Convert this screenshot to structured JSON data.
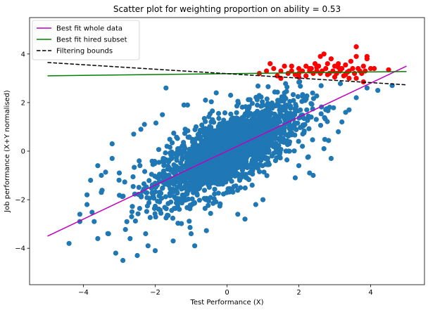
{
  "chart_data": {
    "type": "scatter",
    "title": "Scatter plot for weighting proportion on ability = 0.53",
    "xlabel": "Test Performance (X)",
    "ylabel": "Job performance (X+Y normalised)",
    "xlim": [
      -5.5,
      5.5
    ],
    "ylim": [
      -5.5,
      5.5
    ],
    "xticks": [
      -4,
      -2,
      0,
      2,
      4
    ],
    "yticks": [
      -4,
      -2,
      0,
      2,
      4
    ],
    "grid": false,
    "legend_position": "top-left",
    "series": [
      {
        "name": "Best fit whole data",
        "kind": "line",
        "color": "#bf00bf",
        "dash": "solid",
        "x": [
          -5.0,
          5.0
        ],
        "y": [
          -3.5,
          3.5
        ]
      },
      {
        "name": "Best fit hired subset",
        "kind": "line",
        "color": "#008000",
        "dash": "solid",
        "x": [
          -5.0,
          5.0
        ],
        "y": [
          3.1,
          3.28
        ]
      },
      {
        "name": "Filtering bounds",
        "kind": "line",
        "color": "#000000",
        "dash": "dashed",
        "x": [
          -5.0,
          5.0
        ],
        "y": [
          3.65,
          2.73
        ]
      },
      {
        "kind": "points",
        "color": "#1f77b4",
        "cloud": {
          "x_mean": 0,
          "y_mean": 0,
          "x_sd": 1.0,
          "y_sd": 1.0,
          "correlation": 0.7,
          "count": 2200
        },
        "outliers": [
          [
            -4.4,
            -3.8
          ],
          [
            -4.1,
            -2.9
          ],
          [
            -3.9,
            -1.8
          ],
          [
            -3.8,
            -1.2
          ],
          [
            -3.6,
            -0.6
          ],
          [
            -3.9,
            -2.2
          ],
          [
            -3.5,
            -1.7
          ],
          [
            -3.2,
            -0.3
          ],
          [
            -3.0,
            -0.9
          ],
          [
            -3.3,
            -3.4
          ],
          [
            -2.9,
            -4.5
          ],
          [
            -3.1,
            -4.2
          ],
          [
            -2.7,
            -3.6
          ],
          [
            -2.2,
            -3.9
          ],
          [
            -2.0,
            -4.1
          ],
          [
            -1.5,
            -3.7
          ],
          [
            -1.0,
            -3.4
          ],
          [
            -3.5,
            -1.0
          ],
          [
            -3.2,
            0.3
          ],
          [
            -2.6,
            0.7
          ],
          [
            -2.3,
            1.1
          ],
          [
            -1.8,
            1.5
          ],
          [
            -1.2,
            1.9
          ],
          [
            -0.6,
            2.1
          ],
          [
            0.1,
            2.3
          ],
          [
            1.2,
            1.2
          ],
          [
            1.5,
            0.4
          ],
          [
            2.0,
            -0.6
          ],
          [
            2.4,
            -1.0
          ],
          [
            2.7,
            0.1
          ],
          [
            2.9,
            -0.3
          ],
          [
            3.1,
            0.8
          ],
          [
            3.4,
            1.7
          ],
          [
            0.3,
            -2.6
          ],
          [
            0.8,
            -2.2
          ],
          [
            -0.9,
            -3.9
          ],
          [
            3.2,
            1.2
          ],
          [
            2.1,
            0.2
          ],
          [
            1.9,
            -1.1
          ],
          [
            -1.7,
            2.6
          ],
          [
            -0.3,
            2.4
          ],
          [
            0.7,
            -1.4
          ],
          [
            -4.1,
            -2.6
          ],
          [
            -3.7,
            -2.9
          ],
          [
            -2.5,
            -4.3
          ],
          [
            3.6,
            2.2
          ],
          [
            3.9,
            2.6
          ],
          [
            4.2,
            2.5
          ],
          [
            4.6,
            2.7
          ],
          [
            -3.6,
            -3.6
          ],
          [
            -2.4,
            0.9
          ],
          [
            -1.1,
            1.9
          ],
          [
            0.5,
            -2.8
          ],
          [
            1.0,
            -2.0
          ],
          [
            2.3,
            -0.9
          ]
        ]
      },
      {
        "kind": "points",
        "color": "#ff0000",
        "points": [
          [
            0.9,
            3.2
          ],
          [
            1.1,
            3.3
          ],
          [
            1.2,
            3.6
          ],
          [
            1.3,
            3.4
          ],
          [
            1.4,
            3.1
          ],
          [
            1.5,
            3.3
          ],
          [
            1.6,
            3.5
          ],
          [
            1.7,
            3.2
          ],
          [
            1.8,
            3.3
          ],
          [
            1.9,
            3.15
          ],
          [
            2.0,
            3.4
          ],
          [
            2.0,
            3.2
          ],
          [
            2.1,
            3.3
          ],
          [
            2.2,
            3.5
          ],
          [
            2.2,
            3.1
          ],
          [
            2.3,
            3.3
          ],
          [
            2.35,
            3.4
          ],
          [
            2.4,
            3.2
          ],
          [
            2.45,
            3.6
          ],
          [
            2.5,
            3.3
          ],
          [
            2.55,
            3.5
          ],
          [
            2.6,
            3.2
          ],
          [
            2.6,
            3.9
          ],
          [
            2.65,
            3.3
          ],
          [
            2.7,
            4.0
          ],
          [
            2.75,
            3.4
          ],
          [
            2.8,
            3.6
          ],
          [
            2.85,
            3.2
          ],
          [
            2.9,
            3.8
          ],
          [
            2.95,
            3.3
          ],
          [
            3.0,
            3.5
          ],
          [
            3.05,
            3.2
          ],
          [
            3.1,
            3.6
          ],
          [
            3.15,
            3.3
          ],
          [
            3.2,
            3.4
          ],
          [
            3.25,
            3.1
          ],
          [
            3.3,
            3.55
          ],
          [
            3.35,
            3.25
          ],
          [
            3.4,
            3.3
          ],
          [
            3.45,
            3.7
          ],
          [
            3.5,
            3.4
          ],
          [
            3.55,
            3.2
          ],
          [
            3.6,
            3.9
          ],
          [
            3.6,
            4.3
          ],
          [
            3.65,
            3.4
          ],
          [
            3.7,
            3.3
          ],
          [
            3.75,
            3.2
          ],
          [
            3.8,
            3.5
          ],
          [
            3.85,
            3.3
          ],
          [
            3.9,
            3.8
          ],
          [
            3.9,
            3.9
          ],
          [
            4.0,
            3.4
          ],
          [
            4.1,
            3.4
          ],
          [
            4.5,
            3.35
          ],
          [
            3.6,
            3.0
          ],
          [
            3.8,
            2.85
          ],
          [
            3.4,
            3.0
          ],
          [
            3.0,
            3.05
          ],
          [
            1.5,
            3.0
          ],
          [
            2.0,
            3.05
          ],
          [
            2.3,
            3.4
          ],
          [
            2.8,
            3.15
          ],
          [
            3.3,
            3.15
          ],
          [
            2.5,
            3.45
          ],
          [
            1.8,
            3.5
          ],
          [
            3.1,
            3.45
          ]
        ]
      }
    ]
  }
}
